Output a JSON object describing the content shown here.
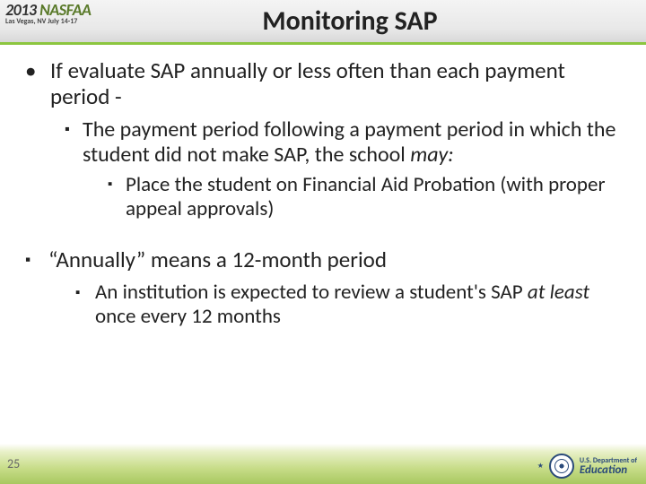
{
  "header": {
    "brand_year": "2013",
    "brand_name": "NASFAA",
    "brand_sub": "Las Vegas, NV July 14-17",
    "title": "Monitoring SAP"
  },
  "content": {
    "l1": "If evaluate SAP annually or less often than each payment period -",
    "l2_pre": "The payment period following a payment period in which the student did not make SAP, the school ",
    "l2_em": "may:",
    "l3": "Place the student on Financial Aid Probation (with proper appeal approvals)",
    "b1": "“Annually” means a 12-month period",
    "b2_pre": "An institution is expected to review a student's SAP ",
    "b2_em": "at least",
    "b2_post": " once every 12 months"
  },
  "footer": {
    "page": "25",
    "dept_small": "U.S. Department of",
    "dept_big": "Education"
  },
  "colors": {
    "accent_green": "#8cc63f",
    "text": "#222222",
    "seal": "#2a4a7a"
  }
}
